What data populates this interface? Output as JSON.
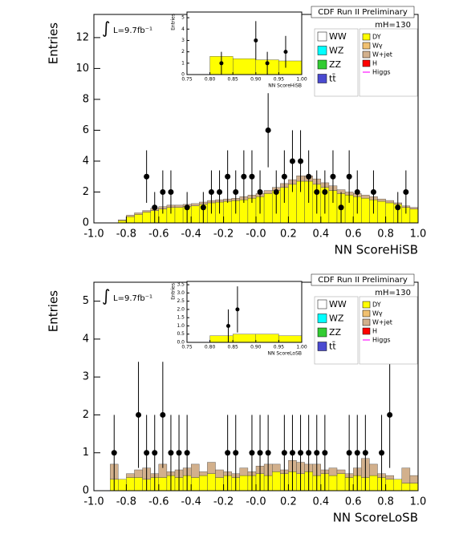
{
  "chart_data": [
    {
      "type": "histogram",
      "xlabel": "NN ScoreHiSB",
      "ylabel": "Entries",
      "label": "CDF Run II Preliminary",
      "mass_label": "mH=130",
      "lumi": "L=9.7fb⁻¹",
      "integral": "∫",
      "bins": [
        -1,
        -0.95,
        -0.9,
        -0.85,
        -0.8,
        -0.75,
        -0.7,
        -0.65,
        -0.6,
        -0.55,
        -0.5,
        -0.45,
        -0.4,
        -0.35,
        -0.3,
        -0.25,
        -0.2,
        -0.15,
        -0.1,
        -0.05,
        0,
        0.05,
        0.1,
        0.15,
        0.2,
        0.25,
        0.3,
        0.35,
        0.4,
        0.45,
        0.5,
        0.55,
        0.6,
        0.65,
        0.7,
        0.75,
        0.8,
        0.85,
        0.9,
        0.95,
        1
      ],
      "series": [
        {
          "name": "DY",
          "color": "#ffff00",
          "values": [
            0,
            0,
            0,
            0.15,
            0.4,
            0.55,
            0.7,
            0.8,
            0.9,
            1.0,
            1.0,
            1.05,
            1.1,
            1.2,
            1.3,
            1.35,
            1.4,
            1.45,
            1.5,
            1.6,
            1.7,
            1.9,
            2.1,
            2.3,
            2.5,
            2.7,
            2.7,
            2.5,
            2.3,
            2.1,
            1.9,
            1.8,
            1.7,
            1.6,
            1.5,
            1.4,
            1.3,
            1.2,
            1.0,
            0.9
          ]
        },
        {
          "name": "W+jet",
          "color": "#d2b08c",
          "values": [
            0,
            0,
            0,
            0.05,
            0.1,
            0.1,
            0.1,
            0.15,
            0.15,
            0.15,
            0.15,
            0.15,
            0.15,
            0.15,
            0.15,
            0.15,
            0.15,
            0.15,
            0.2,
            0.2,
            0.2,
            0.2,
            0.2,
            0.25,
            0.3,
            0.35,
            0.35,
            0.35,
            0.3,
            0.3,
            0.25,
            0.2,
            0.2,
            0.2,
            0.2,
            0.15,
            0.15,
            0.1,
            0.1,
            0.1
          ]
        }
      ],
      "points": {
        "x": [
          -0.675,
          -0.625,
          -0.575,
          -0.525,
          -0.425,
          -0.325,
          -0.275,
          -0.225,
          -0.175,
          -0.125,
          -0.075,
          -0.025,
          0.025,
          0.075,
          0.125,
          0.175,
          0.225,
          0.275,
          0.325,
          0.375,
          0.425,
          0.475,
          0.525,
          0.575,
          0.625,
          0.725,
          0.875,
          0.925
        ],
        "y": [
          3,
          1,
          2,
          2,
          1,
          1,
          2,
          2,
          3,
          2,
          3,
          3,
          2,
          6,
          2,
          3,
          4,
          4,
          3,
          2,
          2,
          3,
          1,
          3,
          2,
          2,
          1,
          2
        ],
        "yerr": [
          1.7,
          1,
          1.4,
          1.4,
          1,
          1,
          1.4,
          1.4,
          1.7,
          1.4,
          1.7,
          1.7,
          1.4,
          2.4,
          1.4,
          1.7,
          2,
          2,
          1.7,
          1.4,
          1.4,
          1.7,
          1,
          1.7,
          1.4,
          1.4,
          1,
          1.4
        ]
      },
      "xlim": [
        -1,
        1
      ],
      "ylim": [
        0,
        13.5
      ],
      "xticks": [
        {
          "value": -1,
          "label": "-1.0"
        },
        -0.8,
        -0.6,
        -0.4,
        -0.2,
        {
          "value": 0,
          "label": "-0.0"
        },
        0.2,
        0.4,
        0.6,
        0.8,
        {
          "value": 1,
          "label": "1.0"
        }
      ],
      "yticks": [
        0,
        2,
        4,
        6,
        8,
        10,
        12
      ],
      "legend": [
        {
          "name": "WW",
          "color": "#ffffff"
        },
        {
          "name": "WZ",
          "color": "#00ffff"
        },
        {
          "name": "ZZ",
          "color": "#33cc33"
        },
        {
          "name": "tt̄",
          "color": "#4a4ad0"
        },
        {
          "name": "DY",
          "color": "#ffff00"
        },
        {
          "name": "Wγ",
          "color": "#f0c070"
        },
        {
          "name": "W+jet",
          "color": "#d2b08c"
        },
        {
          "name": "H",
          "color": "#ff0000"
        },
        {
          "name": "Higgs",
          "color": "#ff44ff"
        }
      ]
    },
    {
      "type": "histogram",
      "xlabel": "NN ScoreHiSB",
      "ylabel": "Entries",
      "bins": [
        0.75,
        0.8,
        0.85,
        0.9,
        0.95,
        1.0
      ],
      "series": [
        {
          "name": "DY",
          "color": "#ffff00",
          "values": [
            0,
            1.6,
            1.4,
            1.3,
            1.2
          ]
        }
      ],
      "points": {
        "x": [
          0.825,
          0.9,
          0.925,
          0.965
        ],
        "y": [
          1,
          3,
          1,
          2
        ],
        "yerr": [
          1,
          1.7,
          1,
          1.4
        ]
      },
      "xlim": [
        0.75,
        1.0
      ],
      "ylim": [
        0,
        5.5
      ],
      "xticks": [
        0.75,
        {
          "value": 0.8,
          "label": "0.80"
        },
        0.85,
        {
          "value": 0.9,
          "label": "0.90"
        },
        0.95,
        {
          "value": 1.0,
          "label": "1.00"
        }
      ],
      "yticks": [
        0,
        1,
        2,
        3,
        4,
        5
      ]
    },
    {
      "type": "histogram",
      "xlabel": "NN ScoreLoSB",
      "ylabel": "Entries",
      "label": "CDF Run II Preliminary",
      "mass_label": "mH=130",
      "lumi": "L=9.7fb⁻¹",
      "integral": "∫",
      "bins": [
        -1,
        -0.95,
        -0.9,
        -0.85,
        -0.8,
        -0.75,
        -0.7,
        -0.65,
        -0.6,
        -0.55,
        -0.5,
        -0.45,
        -0.4,
        -0.35,
        -0.3,
        -0.25,
        -0.2,
        -0.15,
        -0.1,
        -0.05,
        0,
        0.05,
        0.1,
        0.15,
        0.2,
        0.25,
        0.3,
        0.35,
        0.4,
        0.45,
        0.5,
        0.55,
        0.6,
        0.65,
        0.7,
        0.75,
        0.8,
        0.85,
        0.9,
        0.95,
        1
      ],
      "series": [
        {
          "name": "DY",
          "color": "#ffff00",
          "values": [
            0,
            0,
            0.3,
            0.3,
            0.35,
            0.35,
            0.3,
            0.35,
            0.35,
            0.4,
            0.35,
            0.4,
            0.35,
            0.4,
            0.45,
            0.35,
            0.4,
            0.35,
            0.4,
            0.4,
            0.45,
            0.4,
            0.5,
            0.45,
            0.5,
            0.45,
            0.5,
            0.4,
            0.45,
            0.4,
            0.45,
            0.35,
            0.4,
            0.35,
            0.4,
            0.35,
            0.3,
            0.3,
            0.2,
            0.2
          ]
        },
        {
          "name": "W+jet",
          "color": "#d2b08c",
          "values": [
            0,
            0,
            0.4,
            0,
            0.1,
            0.2,
            0.3,
            0.1,
            0.35,
            0.1,
            0.2,
            0.2,
            0.35,
            0.1,
            0.3,
            0.2,
            0.1,
            0.1,
            0.2,
            0.1,
            0.2,
            0.3,
            0.2,
            0.1,
            0.3,
            0.3,
            0.2,
            0.3,
            0.1,
            0.2,
            0.1,
            0.1,
            0.2,
            0.5,
            0.3,
            0.1,
            0.1,
            0,
            0.4,
            0.2
          ]
        }
      ],
      "points": {
        "x": [
          -0.875,
          -0.725,
          -0.675,
          -0.625,
          -0.575,
          -0.525,
          -0.475,
          -0.425,
          -0.175,
          -0.125,
          -0.025,
          0.025,
          0.075,
          0.175,
          0.225,
          0.275,
          0.325,
          0.375,
          0.425,
          0.575,
          0.625,
          0.675,
          0.775,
          0.825
        ],
        "y": [
          1,
          2,
          1,
          1,
          2,
          1,
          1,
          1,
          1,
          1,
          1,
          1,
          1,
          1,
          1,
          1,
          1,
          1,
          1,
          1,
          1,
          1,
          1,
          2
        ],
        "yerr": [
          1,
          1.4,
          1,
          1,
          1.4,
          1,
          1,
          1,
          1,
          1,
          1,
          1,
          1,
          1,
          1,
          1,
          1,
          1,
          1,
          1,
          1,
          1,
          1,
          1.4
        ]
      },
      "xlim": [
        -1,
        1
      ],
      "ylim": [
        0,
        5.5
      ],
      "xticks": [
        {
          "value": -1,
          "label": "-1.0"
        },
        -0.8,
        -0.6,
        -0.4,
        -0.2,
        {
          "value": 0,
          "label": "-0.0"
        },
        0.2,
        0.4,
        0.6,
        0.8,
        {
          "value": 1,
          "label": "1.0"
        }
      ],
      "yticks": [
        0,
        1,
        2,
        3,
        4,
        5
      ],
      "legend": [
        {
          "name": "WW",
          "color": "#ffffff"
        },
        {
          "name": "WZ",
          "color": "#00ffff"
        },
        {
          "name": "ZZ",
          "color": "#33cc33"
        },
        {
          "name": "tt̄",
          "color": "#4a4ad0"
        },
        {
          "name": "DY",
          "color": "#ffff00"
        },
        {
          "name": "Wγ",
          "color": "#f0c070"
        },
        {
          "name": "W+jet",
          "color": "#d2b08c"
        },
        {
          "name": "H",
          "color": "#ff0000"
        },
        {
          "name": "Higgs",
          "color": "#ff44ff"
        }
      ]
    },
    {
      "type": "histogram",
      "xlabel": "NN ScoreLoSB",
      "ylabel": "Entries",
      "bins": [
        0.75,
        0.8,
        0.85,
        0.9,
        0.95,
        1.0
      ],
      "series": [
        {
          "name": "DY",
          "color": "#ffff00",
          "values": [
            0,
            0.4,
            0.5,
            0.5,
            0.4
          ]
        }
      ],
      "points": {
        "x": [
          0.84,
          0.86
        ],
        "y": [
          1,
          2
        ],
        "yerr": [
          1,
          1.4
        ]
      },
      "xlim": [
        0.75,
        1.0
      ],
      "ylim": [
        0,
        3.7
      ],
      "xticks": [
        0.75,
        {
          "value": 0.8,
          "label": "0.80"
        },
        0.85,
        {
          "value": 0.9,
          "label": "0.90"
        },
        0.95,
        {
          "value": 1.0,
          "label": "1.00"
        }
      ],
      "yticks": [
        {
          "value": 0,
          "label": "0.0"
        },
        0.5,
        {
          "value": 1,
          "label": "1.0"
        },
        1.5,
        {
          "value": 2,
          "label": "2.0"
        },
        2.5,
        {
          "value": 3,
          "label": "3.0"
        },
        3.5
      ]
    }
  ]
}
